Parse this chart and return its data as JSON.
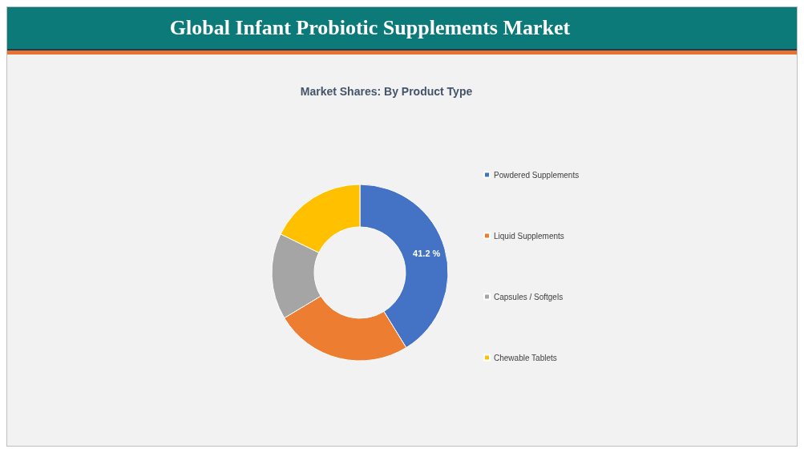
{
  "chart_data": {
    "type": "donut",
    "title": "Global Infant Probiotic Supplements Market",
    "subtitle": "Market Shares: By Product Type",
    "categories": [
      "Powdered Supplements",
      "Liquid Supplements",
      "Capsules / Softgels",
      "Chewable Tablets"
    ],
    "values": [
      41.2,
      25.2,
      15.8,
      17.8
    ],
    "colors": [
      "#4472c4",
      "#ed7d31",
      "#a5a5a5",
      "#ffc000"
    ],
    "value_labels": [
      "41.2 %",
      null,
      null,
      null
    ],
    "legend": "right"
  }
}
